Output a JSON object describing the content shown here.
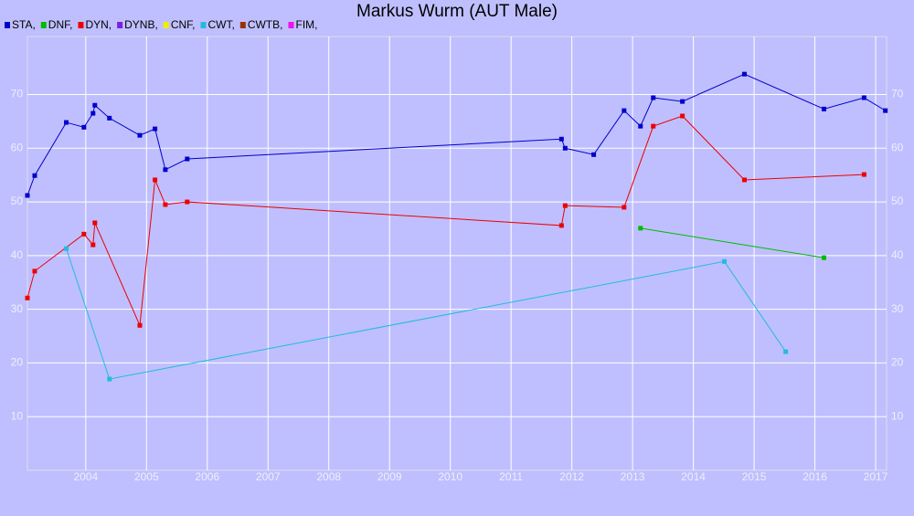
{
  "chart_data": {
    "type": "line",
    "title": "Markus Wurm (AUT Male)",
    "xlim": [
      2003.04,
      2017.18
    ],
    "xticks": [
      2004,
      2005,
      2006,
      2007,
      2008,
      2009,
      2010,
      2011,
      2012,
      2013,
      2014,
      2015,
      2016,
      2017
    ],
    "ylim": [
      0,
      80.8
    ],
    "yticks": [
      10,
      20,
      30,
      40,
      50,
      60,
      70
    ],
    "grid": true,
    "series": [
      {
        "name": "STA,",
        "color": "#0000cc",
        "x": [
          2003.04,
          2003.16,
          2003.68,
          2003.97,
          2004.12,
          2004.15,
          2004.39,
          2004.89,
          2005.14,
          2005.31,
          2005.67,
          2011.83,
          2011.89,
          2012.36,
          2012.86,
          2013.13,
          2013.34,
          2013.82,
          2014.84,
          2016.15,
          2016.81,
          2017.16
        ],
        "values": [
          51.2,
          54.9,
          64.8,
          63.9,
          66.5,
          68.0,
          65.6,
          62.4,
          63.6,
          56.0,
          58.0,
          61.7,
          60.0,
          58.8,
          67.0,
          64.1,
          69.4,
          68.7,
          73.8,
          67.3,
          69.4,
          67.0
        ]
      },
      {
        "name": "DNF,",
        "color": "#00bb00",
        "x": [
          2013.13,
          2016.15
        ],
        "values": [
          45.1,
          39.6
        ]
      },
      {
        "name": "DYN,",
        "color": "#ee0000",
        "x": [
          2003.04,
          2003.16,
          2003.97,
          2004.12,
          2004.15,
          2004.89,
          2005.14,
          2005.31,
          2005.67,
          2011.83,
          2011.89,
          2012.86,
          2013.34,
          2013.82,
          2014.84,
          2016.81
        ],
        "values": [
          32.1,
          37.1,
          44.0,
          42.0,
          46.1,
          27.0,
          54.1,
          49.5,
          50.0,
          45.6,
          49.3,
          49.0,
          64.1,
          66.0,
          54.1,
          55.1
        ]
      },
      {
        "name": "DYNB,",
        "color": "#7722dd",
        "x": [],
        "values": []
      },
      {
        "name": "CNF,",
        "color": "#eeee00",
        "x": [],
        "values": []
      },
      {
        "name": "CWT,",
        "color": "#22bbdd",
        "x": [
          2003.68,
          2004.39,
          2014.51,
          2015.52
        ],
        "values": [
          41.3,
          17.0,
          38.9,
          22.1
        ]
      },
      {
        "name": "CWTB,",
        "color": "#993300",
        "x": [],
        "values": []
      },
      {
        "name": "FIM,",
        "color": "#ee11ee",
        "x": [],
        "values": []
      }
    ]
  }
}
